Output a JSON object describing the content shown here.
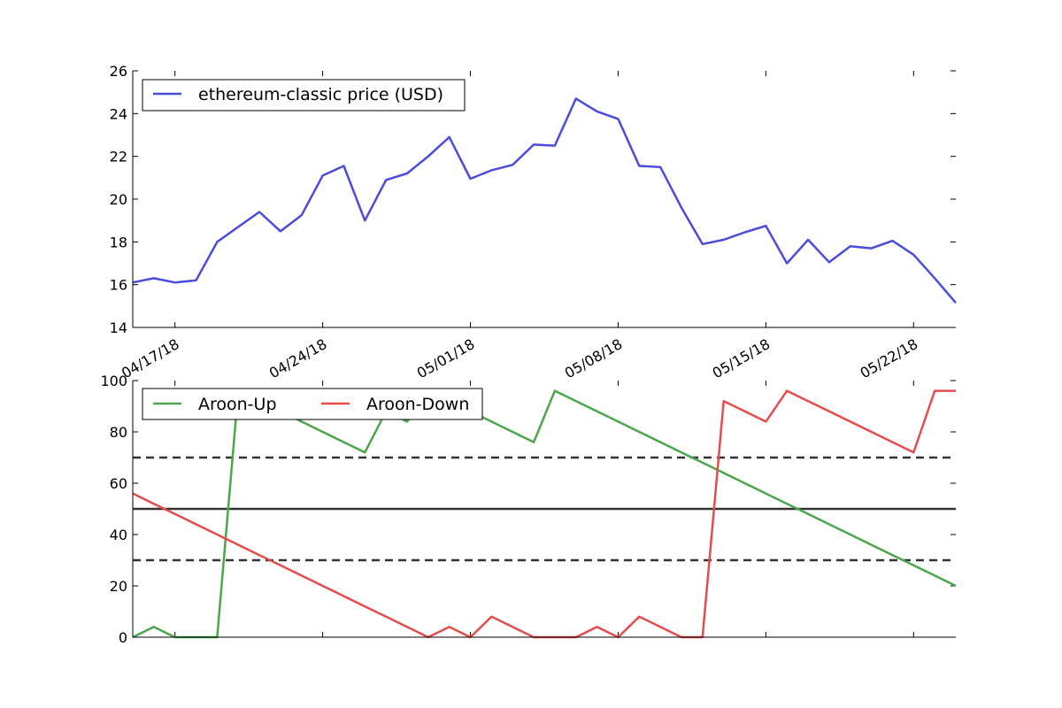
{
  "chart_data": [
    {
      "type": "line",
      "title": "",
      "xlabel": "",
      "ylabel": "",
      "ylim": [
        14,
        26
      ],
      "y_ticks": [
        14,
        16,
        18,
        20,
        22,
        24,
        26
      ],
      "x_dates": [
        "04/15/18",
        "04/16/18",
        "04/17/18",
        "04/18/18",
        "04/19/18",
        "04/20/18",
        "04/21/18",
        "04/22/18",
        "04/23/18",
        "04/24/18",
        "04/25/18",
        "04/26/18",
        "04/27/18",
        "04/28/18",
        "04/29/18",
        "04/30/18",
        "05/01/18",
        "05/02/18",
        "05/03/18",
        "05/04/18",
        "05/05/18",
        "05/06/18",
        "05/07/18",
        "05/08/18",
        "05/09/18",
        "05/10/18",
        "05/11/18",
        "05/12/18",
        "05/13/18",
        "05/14/18",
        "05/15/18",
        "05/16/18",
        "05/17/18",
        "05/18/18",
        "05/19/18",
        "05/20/18",
        "05/21/18",
        "05/22/18",
        "05/23/18",
        "05/24/18"
      ],
      "x_tick_labels": [
        "04/17/18",
        "04/24/18",
        "05/01/18",
        "05/08/18",
        "05/15/18",
        "05/22/18"
      ],
      "x_tick_dates": [
        "04/17/18",
        "04/24/18",
        "05/01/18",
        "05/08/18",
        "05/15/18",
        "05/22/18"
      ],
      "legend_position": "top-left",
      "series": [
        {
          "name": "ethereum-classic price (USD)",
          "color": "#4b4bdc",
          "values": [
            16.1,
            16.3,
            16.1,
            16.2,
            18.0,
            18.7,
            19.4,
            18.5,
            19.25,
            21.1,
            21.55,
            19.0,
            20.9,
            21.2,
            22.0,
            22.9,
            20.95,
            21.35,
            21.6,
            22.55,
            22.5,
            24.7,
            24.1,
            23.75,
            21.55,
            21.5,
            19.6,
            17.9,
            18.1,
            18.45,
            18.75,
            17.0,
            18.1,
            17.05,
            17.8,
            17.7,
            18.05,
            17.4,
            16.3,
            15.15
          ]
        }
      ]
    },
    {
      "type": "line",
      "title": "",
      "xlabel": "",
      "ylabel": "",
      "ylim": [
        0,
        100
      ],
      "y_ticks": [
        0,
        20,
        40,
        60,
        80,
        100
      ],
      "legend_position": "top-left",
      "grid": false,
      "reference_lines": [
        {
          "value": 70,
          "style": "dashed",
          "color": "#333333"
        },
        {
          "value": 50,
          "style": "solid",
          "color": "#333333"
        },
        {
          "value": 30,
          "style": "dashed",
          "color": "#333333"
        }
      ],
      "series": [
        {
          "name": "Aroon-Up",
          "color": "#4ca64c",
          "values": [
            0,
            4,
            0,
            0,
            0,
            96,
            92,
            88,
            84,
            80,
            76,
            72,
            88,
            84,
            96,
            92,
            88,
            84,
            80,
            76,
            96,
            92,
            88,
            84,
            80,
            76,
            72,
            68,
            64,
            60,
            56,
            52,
            48,
            44,
            40,
            36,
            32,
            28,
            24,
            20
          ]
        },
        {
          "name": "Aroon-Down",
          "color": "#e54c4c",
          "values": [
            56,
            52,
            48,
            44,
            40,
            36,
            32,
            28,
            24,
            20,
            16,
            12,
            8,
            4,
            0,
            4,
            0,
            8,
            4,
            0,
            0,
            0,
            4,
            0,
            8,
            4,
            0,
            0,
            92,
            88,
            84,
            96,
            92,
            88,
            84,
            80,
            76,
            72,
            96,
            96
          ]
        }
      ]
    }
  ]
}
